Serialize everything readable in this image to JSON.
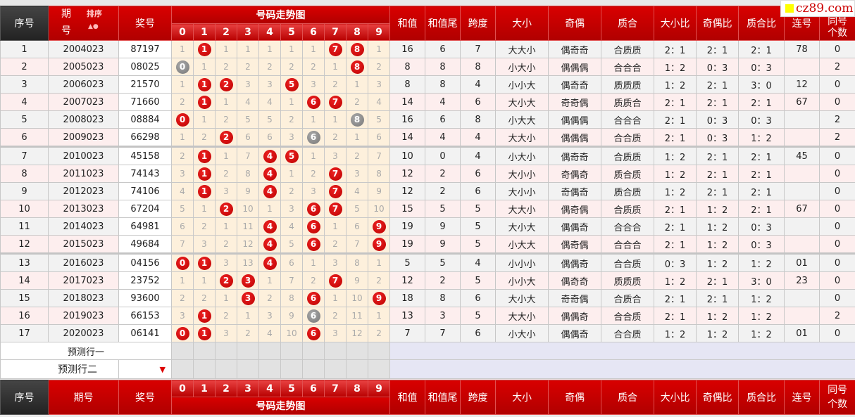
{
  "logo": {
    "text": "cz89.com",
    "square_color": "#ffff00"
  },
  "header": {
    "seq": "序号",
    "issue": "期号",
    "issue_top": "期",
    "issue_bottom": "号",
    "sort": "排序",
    "number": "奖号",
    "trend": "号码走势图",
    "digits": [
      "0",
      "1",
      "2",
      "3",
      "4",
      "5",
      "6",
      "7",
      "8",
      "9"
    ],
    "right": [
      "和值",
      "和值尾",
      "跨度",
      "大小",
      "奇偶",
      "质合",
      "大小比",
      "奇偶比",
      "质合比",
      "连号"
    ],
    "same_top": "同号",
    "same_bottom": "个数",
    "same": "同号个数"
  },
  "colors": {
    "hit": "#cc0000",
    "repeat": "#888888",
    "header": "#c00000"
  },
  "rows": [
    {
      "seq": "1",
      "issue": "2004023",
      "number": "87197",
      "cells": [
        "1",
        "1",
        "1",
        "1",
        "1",
        "1",
        "1",
        "7",
        "8",
        "1"
      ],
      "hits": [
        1,
        7,
        8
      ],
      "repeat": [],
      "vals": [
        "16",
        "6",
        "7",
        "大大小",
        "偶奇奇",
        "合质质",
        "2：1",
        "2：1",
        "2：1",
        "78",
        "0"
      ]
    },
    {
      "seq": "2",
      "issue": "2005023",
      "number": "08025",
      "cells": [
        "0",
        "1",
        "2",
        "2",
        "2",
        "2",
        "2",
        "1",
        "8",
        "2"
      ],
      "hits": [
        8
      ],
      "repeat": [
        0
      ],
      "vals": [
        "8",
        "8",
        "8",
        "小大小",
        "偶偶偶",
        "合合合",
        "1：2",
        "0：3",
        "0：3",
        "",
        "2"
      ]
    },
    {
      "seq": "3",
      "issue": "2006023",
      "number": "21570",
      "cells": [
        "1",
        "1",
        "2",
        "3",
        "3",
        "5",
        "3",
        "2",
        "1",
        "3"
      ],
      "hits": [
        1,
        2,
        5
      ],
      "repeat": [],
      "vals": [
        "8",
        "8",
        "4",
        "小小大",
        "偶奇奇",
        "质质质",
        "1：2",
        "2：1",
        "3：0",
        "12",
        "0"
      ]
    },
    {
      "seq": "4",
      "issue": "2007023",
      "number": "71660",
      "cells": [
        "2",
        "1",
        "1",
        "4",
        "4",
        "1",
        "6",
        "7",
        "2",
        "4"
      ],
      "hits": [
        1,
        6,
        7
      ],
      "repeat": [],
      "vals": [
        "14",
        "4",
        "6",
        "大小大",
        "奇奇偶",
        "质质合",
        "2：1",
        "2：1",
        "2：1",
        "67",
        "0"
      ]
    },
    {
      "seq": "5",
      "issue": "2008023",
      "number": "08884",
      "cells": [
        "0",
        "1",
        "2",
        "5",
        "5",
        "2",
        "1",
        "1",
        "8",
        "5"
      ],
      "hits": [
        0
      ],
      "repeat": [
        8
      ],
      "vals": [
        "16",
        "6",
        "8",
        "小大大",
        "偶偶偶",
        "合合合",
        "2：1",
        "0：3",
        "0：3",
        "",
        "2"
      ]
    },
    {
      "seq": "6",
      "issue": "2009023",
      "number": "66298",
      "cells": [
        "1",
        "2",
        "2",
        "6",
        "6",
        "3",
        "6",
        "2",
        "1",
        "6"
      ],
      "hits": [
        2
      ],
      "repeat": [
        6
      ],
      "vals": [
        "14",
        "4",
        "4",
        "大大小",
        "偶偶偶",
        "合合质",
        "2：1",
        "0：3",
        "1：2",
        "",
        "2"
      ]
    },
    {
      "seq": "7",
      "issue": "2010023",
      "number": "45158",
      "cells": [
        "2",
        "1",
        "1",
        "7",
        "4",
        "5",
        "1",
        "3",
        "2",
        "7"
      ],
      "hits": [
        1,
        4,
        5
      ],
      "repeat": [],
      "vals": [
        "10",
        "0",
        "4",
        "小大小",
        "偶奇奇",
        "合质质",
        "1：2",
        "2：1",
        "2：1",
        "45",
        "0"
      ]
    },
    {
      "seq": "8",
      "issue": "2011023",
      "number": "74143",
      "cells": [
        "3",
        "1",
        "2",
        "8",
        "4",
        "1",
        "2",
        "7",
        "3",
        "8"
      ],
      "hits": [
        1,
        4,
        7
      ],
      "repeat": [],
      "vals": [
        "12",
        "2",
        "6",
        "大小小",
        "奇偶奇",
        "质合质",
        "1：2",
        "2：1",
        "2：1",
        "",
        "0"
      ]
    },
    {
      "seq": "9",
      "issue": "2012023",
      "number": "74106",
      "cells": [
        "4",
        "1",
        "3",
        "9",
        "4",
        "2",
        "3",
        "7",
        "4",
        "9"
      ],
      "hits": [
        1,
        4,
        7
      ],
      "repeat": [],
      "vals": [
        "12",
        "2",
        "6",
        "大小小",
        "奇偶奇",
        "质合质",
        "1：2",
        "2：1",
        "2：1",
        "",
        "0"
      ]
    },
    {
      "seq": "10",
      "issue": "2013023",
      "number": "67204",
      "cells": [
        "5",
        "1",
        "2",
        "10",
        "1",
        "3",
        "6",
        "7",
        "5",
        "10"
      ],
      "hits": [
        2,
        6,
        7
      ],
      "repeat": [],
      "vals": [
        "15",
        "5",
        "5",
        "大大小",
        "偶奇偶",
        "合质质",
        "2：1",
        "1：2",
        "2：1",
        "67",
        "0"
      ]
    },
    {
      "seq": "11",
      "issue": "2014023",
      "number": "64981",
      "cells": [
        "6",
        "2",
        "1",
        "11",
        "4",
        "4",
        "6",
        "1",
        "6",
        "9"
      ],
      "hits": [
        4,
        6,
        9
      ],
      "repeat": [],
      "vals": [
        "19",
        "9",
        "5",
        "大小大",
        "偶偶奇",
        "合合合",
        "2：1",
        "1：2",
        "0：3",
        "",
        "0"
      ]
    },
    {
      "seq": "12",
      "issue": "2015023",
      "number": "49684",
      "cells": [
        "7",
        "3",
        "2",
        "12",
        "4",
        "5",
        "6",
        "2",
        "7",
        "9"
      ],
      "hits": [
        4,
        6,
        9
      ],
      "repeat": [],
      "vals": [
        "19",
        "9",
        "5",
        "小大大",
        "偶奇偶",
        "合合合",
        "2：1",
        "1：2",
        "0：3",
        "",
        "0"
      ]
    },
    {
      "seq": "13",
      "issue": "2016023",
      "number": "04156",
      "cells": [
        "0",
        "1",
        "3",
        "13",
        "4",
        "6",
        "1",
        "3",
        "8",
        "1"
      ],
      "hits": [
        0,
        1,
        4
      ],
      "repeat": [],
      "vals": [
        "5",
        "5",
        "4",
        "小小小",
        "偶偶奇",
        "合合质",
        "0：3",
        "1：2",
        "1：2",
        "01",
        "0"
      ]
    },
    {
      "seq": "14",
      "issue": "2017023",
      "number": "23752",
      "cells": [
        "1",
        "1",
        "2",
        "3",
        "1",
        "7",
        "2",
        "7",
        "9",
        "2"
      ],
      "hits": [
        2,
        3,
        7
      ],
      "repeat": [],
      "vals": [
        "12",
        "2",
        "5",
        "小小大",
        "偶奇奇",
        "质质质",
        "1：2",
        "2：1",
        "3：0",
        "23",
        "0"
      ]
    },
    {
      "seq": "15",
      "issue": "2018023",
      "number": "93600",
      "cells": [
        "2",
        "2",
        "1",
        "3",
        "2",
        "8",
        "6",
        "1",
        "10",
        "9"
      ],
      "hits": [
        3,
        6,
        9
      ],
      "repeat": [],
      "vals": [
        "18",
        "8",
        "6",
        "大小大",
        "奇奇偶",
        "合质合",
        "2：1",
        "2：1",
        "1：2",
        "",
        "0"
      ]
    },
    {
      "seq": "16",
      "issue": "2019023",
      "number": "66153",
      "cells": [
        "3",
        "1",
        "2",
        "1",
        "3",
        "9",
        "6",
        "2",
        "11",
        "1"
      ],
      "hits": [
        1
      ],
      "repeat": [
        6
      ],
      "vals": [
        "13",
        "3",
        "5",
        "大大小",
        "偶偶奇",
        "合合质",
        "2：1",
        "1：2",
        "1：2",
        "",
        "2"
      ]
    },
    {
      "seq": "17",
      "issue": "2020023",
      "number": "06141",
      "cells": [
        "0",
        "1",
        "3",
        "2",
        "4",
        "10",
        "6",
        "3",
        "12",
        "2"
      ],
      "hits": [
        0,
        1,
        6
      ],
      "repeat": [],
      "vals": [
        "7",
        "7",
        "6",
        "小大小",
        "偶偶奇",
        "合合质",
        "1：2",
        "1：2",
        "1：2",
        "01",
        "0"
      ]
    }
  ],
  "predict": {
    "row1": "预测行一",
    "row2": "预测行二"
  }
}
